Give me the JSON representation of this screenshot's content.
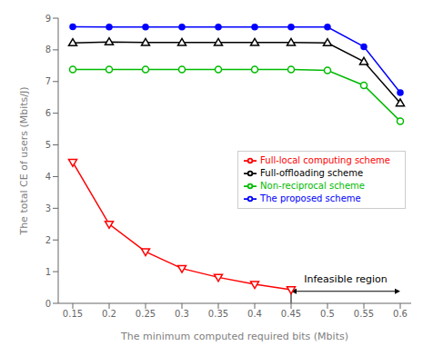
{
  "chart_data": {
    "type": "line",
    "x": [
      0.15,
      0.2,
      0.25,
      0.3,
      0.35,
      0.4,
      0.45,
      0.5,
      0.55,
      0.6
    ],
    "series": [
      {
        "name": "Full-local computing scheme",
        "color": "#ff0000",
        "marker": "triangle-down-open",
        "values": [
          4.45,
          2.5,
          1.63,
          1.1,
          0.82,
          0.6,
          0.43,
          null,
          null,
          null
        ]
      },
      {
        "name": "Full-offloading scheme",
        "color": "#000000",
        "marker": "triangle-up-open",
        "values": [
          8.22,
          8.25,
          8.23,
          8.23,
          8.23,
          8.23,
          8.23,
          8.22,
          7.63,
          6.32
        ]
      },
      {
        "name": "Non-reciprocal scheme",
        "color": "#00bb00",
        "marker": "circle-open",
        "values": [
          7.38,
          7.38,
          7.38,
          7.38,
          7.38,
          7.38,
          7.38,
          7.35,
          6.88,
          5.75
        ]
      },
      {
        "name": "The proposed scheme",
        "color": "#0000ff",
        "marker": "circle",
        "values": [
          8.73,
          8.72,
          8.72,
          8.72,
          8.72,
          8.72,
          8.72,
          8.72,
          8.1,
          6.65
        ]
      }
    ],
    "xlabel": "The minimum computed required bits (Mbits)",
    "ylabel": "The total CE of users (Mbits/J)",
    "xlim": [
      0.13,
      0.615
    ],
    "ylim": [
      0,
      9.0
    ],
    "xticks": [
      0.15,
      0.2,
      0.25,
      0.3,
      0.35,
      0.4,
      0.45,
      0.5,
      0.55,
      0.6
    ],
    "yticks": [
      0,
      1,
      2,
      3,
      4,
      5,
      6,
      7,
      8,
      9
    ],
    "grid": false,
    "legend": "right",
    "annotations": [
      {
        "type": "vline",
        "x": 0.45,
        "y": [
          0,
          0.43
        ]
      },
      {
        "type": "arrow",
        "x": [
          0.45,
          0.6
        ],
        "y": 0.38,
        "text": "Infeasible region",
        "text_y": 0.6
      }
    ]
  }
}
